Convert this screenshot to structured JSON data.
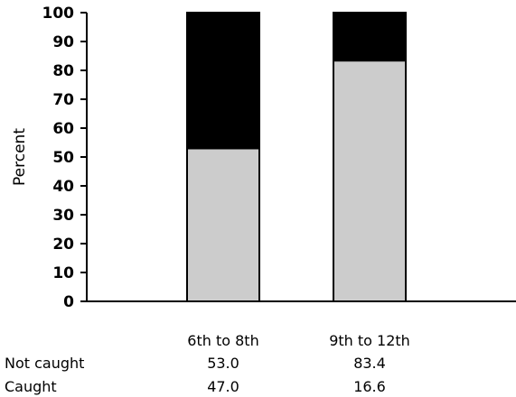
{
  "chart_data": {
    "type": "bar",
    "stacked": true,
    "ylabel": "Percent",
    "ylim": [
      0,
      100
    ],
    "yticks": [
      0,
      10,
      20,
      30,
      40,
      50,
      60,
      70,
      80,
      90,
      100
    ],
    "categories": [
      "6th to 8th",
      "9th to 12th"
    ],
    "series": [
      {
        "name": "Not caught",
        "values": [
          53.0,
          83.4
        ],
        "color": "#cccccc",
        "labels": [
          "53.0",
          "83.4"
        ]
      },
      {
        "name": "Caught",
        "values": [
          47.0,
          16.6
        ],
        "color": "#000000",
        "labels": [
          "47.0",
          "16.6"
        ]
      }
    ],
    "grid": false
  }
}
